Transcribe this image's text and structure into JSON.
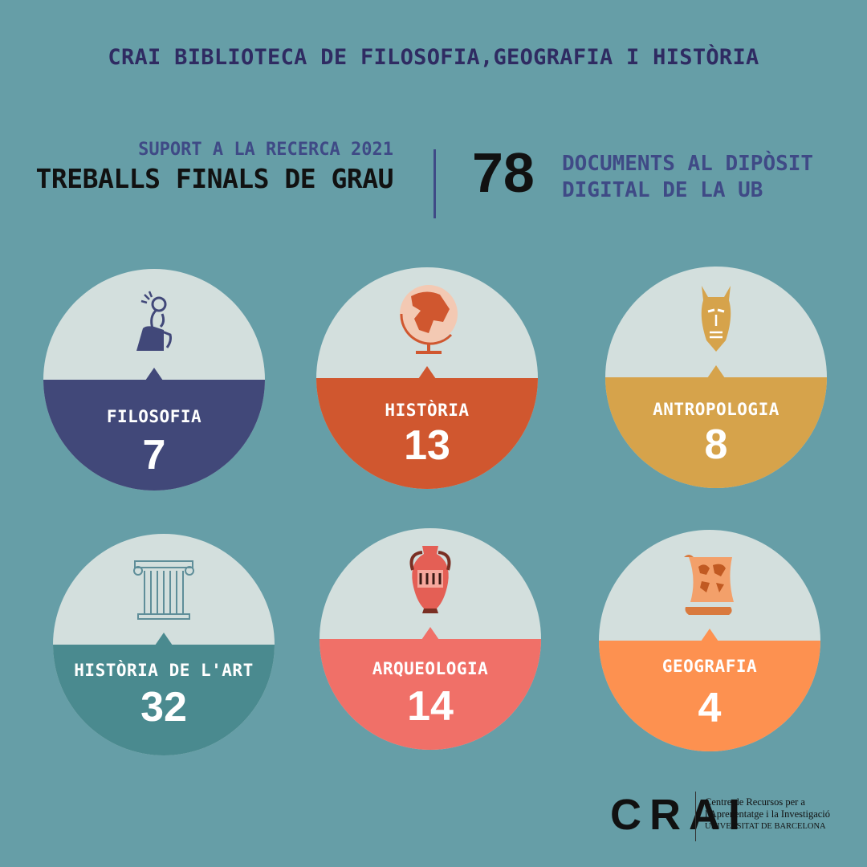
{
  "header": {
    "title": "CRAI BIBLIOTECA DE FILOSOFIA,GEOGRAFIA I HISTÒRIA"
  },
  "summary": {
    "kicker": "SUPORT A LA RECERCA 2021",
    "heading": "TREBALLS FINALS DE GRAU",
    "total": "78",
    "deposit_line1": "DOCUMENTS AL DIPÒSIT",
    "deposit_line2": "DIGITAL DE LA UB"
  },
  "categories": [
    {
      "label": "FILOSOFIA",
      "value": "7",
      "color": "#414879",
      "icon": "thinker-icon"
    },
    {
      "label": "HISTÒRIA",
      "value": "13",
      "color": "#d0572f",
      "icon": "globe-icon"
    },
    {
      "label": "ANTROPOLOGIA",
      "value": "8",
      "color": "#d6a34b",
      "icon": "mask-icon"
    },
    {
      "label": "HISTÒRIA DE L'ART",
      "value": "32",
      "color": "#4a8a8f",
      "icon": "column-icon"
    },
    {
      "label": "ARQUEOLOGIA",
      "value": "14",
      "color": "#f07068",
      "icon": "amphora-icon"
    },
    {
      "label": "GEOGRAFIA",
      "value": "4",
      "color": "#fd9150",
      "icon": "map-scroll-icon"
    }
  ],
  "footer": {
    "logo": "CRAI",
    "line1": "Centre de Recursos per a",
    "line2": "l'Aprenentatge i la Investigació",
    "line3": "UNIVERSITAT DE BARCELONA"
  }
}
